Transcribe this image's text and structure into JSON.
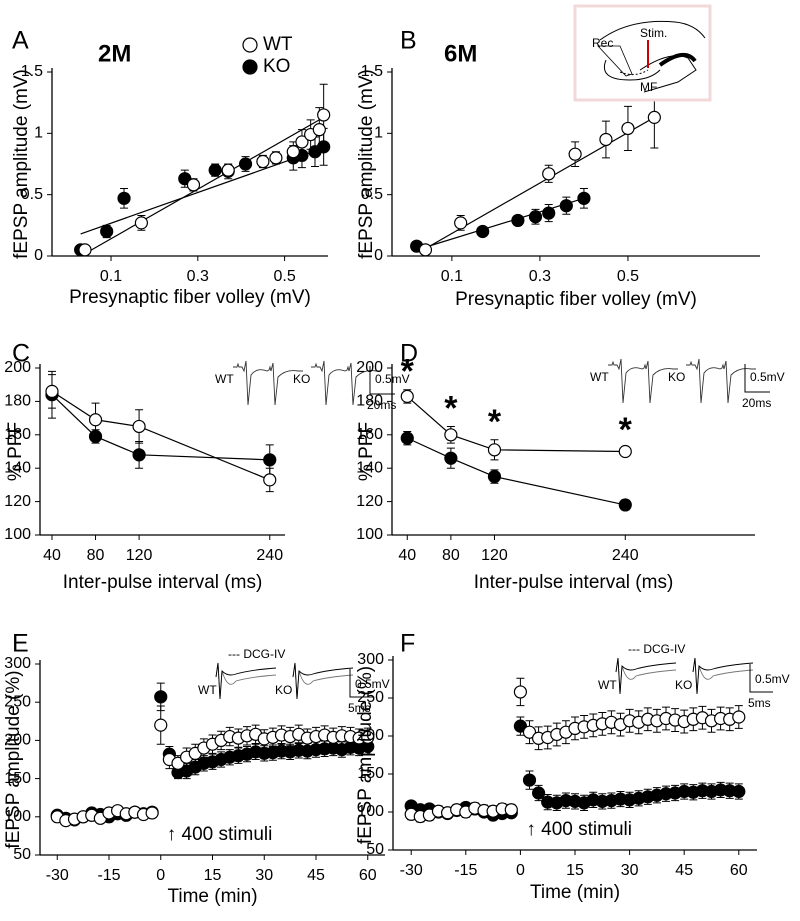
{
  "chart_data": [
    {
      "type": "scatter",
      "panel_label": "A",
      "title": "2M",
      "xlabel": "Presynaptic fiber volley (mV)",
      "ylabel": "fEPSP amplitude (mV)",
      "xlim": [
        -0.036,
        0.6
      ],
      "ylim": [
        0,
        1.5
      ],
      "xticks": [
        0.1,
        0.3,
        0.5
      ],
      "yticks": [
        0,
        0.5,
        1,
        1.5
      ],
      "legend": true,
      "series": [
        {
          "name": "WT",
          "color": "#000000",
          "marker_fill": "#ffffff",
          "x": [
            0.04,
            0.17,
            0.29,
            0.37,
            0.45,
            0.48,
            0.52,
            0.54,
            0.56,
            0.58,
            0.59
          ],
          "values": [
            0.05,
            0.27,
            0.58,
            0.7,
            0.77,
            0.8,
            0.85,
            0.93,
            0.99,
            1.03,
            1.15
          ],
          "errors": [
            0.02,
            0.06,
            0.05,
            0.04,
            0.05,
            0.05,
            0.08,
            0.1,
            0.12,
            0.18,
            0.25
          ],
          "fit_x": [
            0.05,
            0.59
          ],
          "fit_y": [
            0.04,
            1.13
          ]
        },
        {
          "name": "KO",
          "color": "#000000",
          "marker_fill": "#000000",
          "x": [
            0.03,
            0.09,
            0.13,
            0.27,
            0.34,
            0.37,
            0.41,
            0.52,
            0.54,
            0.57,
            0.59
          ],
          "values": [
            0.05,
            0.2,
            0.47,
            0.63,
            0.7,
            0.69,
            0.75,
            0.8,
            0.82,
            0.85,
            0.89
          ],
          "errors": [
            0.02,
            0.05,
            0.08,
            0.07,
            0.05,
            0.06,
            0.06,
            0.1,
            0.1,
            0.12,
            0.15
          ],
          "fit_x": [
            0.03,
            0.59
          ],
          "fit_y": [
            0.18,
            0.88
          ]
        }
      ]
    },
    {
      "type": "scatter",
      "panel_label": "B",
      "title": "6M",
      "xlabel": "Presynaptic fiber volley (mV)",
      "ylabel": "fEPSP amplitude (mV)",
      "xlim": [
        -0.036,
        0.8
      ],
      "ylim": [
        0,
        1.5
      ],
      "xticks": [
        0.1,
        0.3,
        0.5
      ],
      "yticks": [
        0,
        0.5,
        1,
        1.5
      ],
      "inset": {
        "stim": "Stim.",
        "rec": "Rec",
        "mf": "MF"
      },
      "series": [
        {
          "color": "#000000",
          "marker_fill": "#ffffff",
          "x": [
            0.04,
            0.12,
            0.32,
            0.38,
            0.45,
            0.5,
            0.56
          ],
          "values": [
            0.05,
            0.27,
            0.67,
            0.83,
            0.95,
            1.04,
            1.13
          ],
          "errors": [
            0.02,
            0.06,
            0.07,
            0.1,
            0.15,
            0.18,
            0.25
          ],
          "fit_x": [
            0.03,
            0.56
          ],
          "fit_y": [
            0.04,
            1.13
          ]
        },
        {
          "color": "#000000",
          "marker_fill": "#000000",
          "x": [
            0.02,
            0.17,
            0.25,
            0.29,
            0.32,
            0.36,
            0.4
          ],
          "values": [
            0.08,
            0.2,
            0.29,
            0.32,
            0.35,
            0.41,
            0.47
          ],
          "errors": [
            0.02,
            0.03,
            0.04,
            0.06,
            0.07,
            0.07,
            0.08
          ],
          "fit_x": [
            0.02,
            0.4
          ],
          "fit_y": [
            0.05,
            0.47
          ]
        }
      ]
    },
    {
      "type": "line",
      "panel_label": "C",
      "xlabel": "Inter-pulse interval (ms)",
      "ylabel": "% PPF",
      "xlim": [
        29,
        254
      ],
      "ylim": [
        100,
        200
      ],
      "xticks": [
        40,
        80,
        120,
        240
      ],
      "yticks": [
        100,
        120,
        140,
        160,
        180,
        200
      ],
      "x": [
        40,
        80,
        120,
        240
      ],
      "inset": {
        "kind": "ppf",
        "scale_y": "0.5mV",
        "scale_x": "20ms"
      },
      "series": [
        {
          "name": "WT",
          "color": "#000000",
          "marker_fill": "#ffffff",
          "values": [
            186,
            169,
            165,
            133
          ],
          "errors": [
            10,
            10,
            10,
            7
          ]
        },
        {
          "name": "KO",
          "color": "#000000",
          "marker_fill": "#000000",
          "values": [
            184,
            159,
            148,
            145
          ],
          "errors": [
            14,
            4,
            8,
            9
          ]
        }
      ]
    },
    {
      "type": "line",
      "panel_label": "D",
      "xlabel": "Inter-pulse interval (ms)",
      "ylabel": "% PPF",
      "xlim": [
        26,
        359
      ],
      "ylim": [
        100,
        200
      ],
      "xticks": [
        40,
        80,
        120,
        240
      ],
      "yticks": [
        100,
        120,
        140,
        160,
        180,
        200
      ],
      "x": [
        40,
        80,
        120,
        240
      ],
      "significance": [
        "*",
        "*",
        "*",
        "*"
      ],
      "inset": {
        "kind": "ppf",
        "scale_y": "0.5mV",
        "scale_x": "20ms"
      },
      "series": [
        {
          "name": "WT",
          "color": "#000000",
          "marker_fill": "#ffffff",
          "values": [
            183,
            160,
            151,
            150
          ],
          "errors": [
            4,
            5,
            6,
            2
          ]
        },
        {
          "name": "KO",
          "color": "#000000",
          "marker_fill": "#000000",
          "values": [
            158,
            146,
            135,
            118
          ],
          "errors": [
            4,
            6,
            4,
            3
          ]
        }
      ]
    },
    {
      "type": "scatter",
      "panel_label": "E",
      "xlabel": "Time (min)",
      "ylabel": "fEPSP amplitude (%)",
      "xlim": [
        -35,
        65
      ],
      "ylim": [
        50,
        300
      ],
      "xticks": [
        -30,
        -15,
        0,
        15,
        30,
        45,
        60
      ],
      "yticks": [
        50,
        100,
        150,
        200,
        250,
        300
      ],
      "annotation": "↑ 400 stimuli",
      "inset": {
        "kind": "ltp",
        "drug": "--- DCG-IV",
        "scale_y": "0.5mV",
        "scale_x": "5ms"
      },
      "x": [
        -30,
        -27.5,
        -25,
        -22.5,
        -20,
        -17.5,
        -15,
        -12.5,
        -10,
        -7.5,
        -5,
        -2.5,
        0,
        2.5,
        5,
        7.5,
        10,
        12.5,
        15,
        17.5,
        20,
        22.5,
        25,
        27.5,
        30,
        32.5,
        35,
        37.5,
        40,
        42.5,
        45,
        47.5,
        50,
        52.5,
        55,
        57.5,
        60
      ],
      "series": [
        {
          "name": "WT",
          "color": "#000000",
          "marker_fill": "#ffffff",
          "values": [
            100,
            95,
            97,
            100,
            102,
            98,
            105,
            108,
            104,
            106,
            103,
            105,
            220,
            175,
            170,
            178,
            183,
            190,
            195,
            200,
            205,
            203,
            206,
            208,
            202,
            204,
            207,
            205,
            208,
            203,
            205,
            207,
            204,
            206,
            205,
            203,
            204
          ],
          "errors": [
            6,
            6,
            6,
            6,
            6,
            6,
            6,
            6,
            6,
            6,
            6,
            6,
            25,
            12,
            10,
            12,
            12,
            12,
            12,
            12,
            12,
            12,
            12,
            12,
            12,
            12,
            12,
            12,
            12,
            12,
            12,
            12,
            12,
            12,
            12,
            12,
            12
          ]
        },
        {
          "name": "KO",
          "color": "#000000",
          "marker_fill": "#000000",
          "values": [
            102,
            98,
            96,
            100,
            105,
            103,
            100,
            104,
            102,
            106,
            104,
            106,
            257,
            182,
            158,
            160,
            165,
            170,
            172,
            175,
            178,
            180,
            182,
            185,
            183,
            184,
            186,
            185,
            187,
            186,
            188,
            189,
            190,
            188,
            191,
            190,
            192
          ],
          "errors": [
            6,
            6,
            6,
            6,
            6,
            6,
            6,
            6,
            6,
            6,
            6,
            6,
            18,
            10,
            8,
            10,
            10,
            10,
            10,
            10,
            10,
            10,
            10,
            10,
            10,
            10,
            10,
            10,
            10,
            10,
            10,
            10,
            10,
            10,
            10,
            10,
            10
          ]
        }
      ]
    },
    {
      "type": "scatter",
      "panel_label": "F",
      "xlabel": "Time (min)",
      "ylabel": "fEPSP amplitude (%)",
      "xlim": [
        -35,
        65
      ],
      "ylim": [
        50,
        300
      ],
      "xticks": [
        -30,
        -15,
        0,
        15,
        30,
        45,
        60
      ],
      "yticks": [
        50,
        100,
        150,
        200,
        250,
        300
      ],
      "annotation": "↑ 400 stimuli",
      "inset": {
        "kind": "ltp",
        "drug": "--- DCG-IV",
        "scale_y": "0.5mV",
        "scale_x": "5ms"
      },
      "x": [
        -30,
        -27.5,
        -25,
        -22.5,
        -20,
        -17.5,
        -15,
        -12.5,
        -10,
        -7.5,
        -5,
        -2.5,
        0,
        2.5,
        5,
        7.5,
        10,
        12.5,
        15,
        17.5,
        20,
        22.5,
        25,
        27.5,
        30,
        32.5,
        35,
        37.5,
        40,
        42.5,
        45,
        47.5,
        50,
        52.5,
        55,
        57.5,
        60
      ],
      "series": [
        {
          "name": "WT",
          "color": "#000000",
          "marker_fill": "#ffffff",
          "values": [
            97,
            94,
            96,
            101,
            99,
            103,
            100,
            105,
            102,
            101,
            104,
            103,
            258,
            205,
            197,
            198,
            202,
            205,
            210,
            212,
            214,
            216,
            218,
            215,
            220,
            218,
            222,
            220,
            223,
            221,
            219,
            222,
            224,
            220,
            223,
            222,
            225
          ],
          "errors": [
            7,
            7,
            7,
            7,
            7,
            7,
            7,
            7,
            7,
            7,
            7,
            7,
            18,
            15,
            15,
            15,
            15,
            15,
            15,
            15,
            15,
            15,
            15,
            15,
            15,
            15,
            15,
            15,
            15,
            15,
            15,
            15,
            15,
            15,
            15,
            15,
            15
          ]
        },
        {
          "name": "KO",
          "color": "#000000",
          "marker_fill": "#000000",
          "values": [
            108,
            103,
            104,
            100,
            98,
            102,
            106,
            104,
            100,
            96,
            98,
            99,
            213,
            142,
            125,
            113,
            112,
            115,
            114,
            112,
            116,
            114,
            115,
            117,
            116,
            118,
            120,
            122,
            124,
            125,
            127,
            126,
            128,
            127,
            129,
            128,
            127
          ],
          "errors": [
            6,
            6,
            6,
            6,
            6,
            6,
            6,
            6,
            6,
            6,
            6,
            6,
            12,
            12,
            10,
            10,
            10,
            10,
            10,
            10,
            10,
            10,
            10,
            10,
            10,
            10,
            10,
            10,
            10,
            10,
            10,
            10,
            10,
            10,
            10,
            10,
            10
          ]
        }
      ]
    }
  ]
}
